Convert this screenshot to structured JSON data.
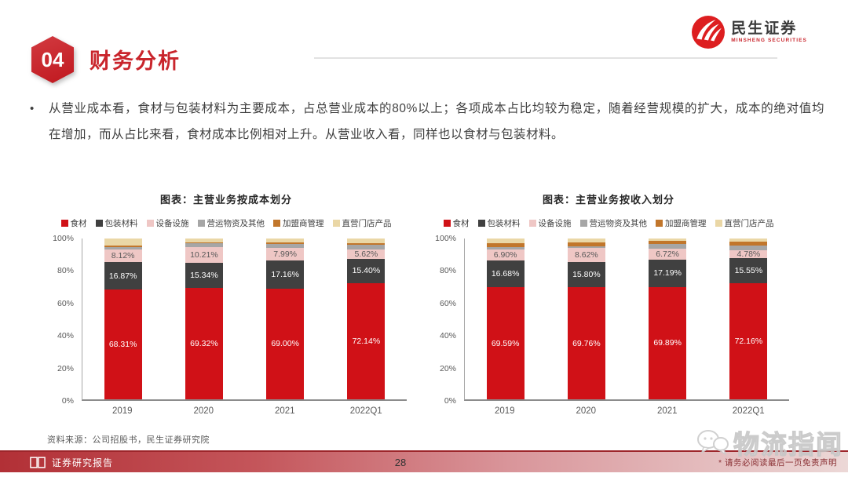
{
  "header": {
    "section_number": "04",
    "title": "财务分析"
  },
  "logo": {
    "name": "民生证券",
    "subtitle": "MINSHENG SECURITIES",
    "brand_color": "#dd1e20"
  },
  "bullet": {
    "marker": "•",
    "text": "从营业成本看，食材与包装材料为主要成本，占总营业成本的80%以上；各项成本占比均较为稳定，随着经营规模的扩大，成本的绝对值均在增加，而从占比来看，食材成本比例相对上升。从营业收入看，同样也以食材与包装材料。"
  },
  "chart_data": [
    {
      "type": "bar",
      "stacked": true,
      "title": "图表：主营业务按成本划分",
      "categories": [
        "2019",
        "2020",
        "2021",
        "2022Q1"
      ],
      "ylim": [
        0,
        100
      ],
      "yticks": [
        "0%",
        "20%",
        "40%",
        "60%",
        "80%",
        "100%"
      ],
      "grid": false,
      "legend_position": "top",
      "series": [
        {
          "name": "食材",
          "color": "#d01117",
          "labeled": true,
          "label_color": "#ffffff",
          "values": [
            68.31,
            69.32,
            69.0,
            72.14
          ]
        },
        {
          "name": "包装材料",
          "color": "#404040",
          "labeled": true,
          "label_color": "#ffffff",
          "values": [
            16.87,
            15.34,
            17.16,
            15.4
          ]
        },
        {
          "name": "设备设施",
          "color": "#efc7c5",
          "labeled": true,
          "label_color": "#595959",
          "values": [
            8.12,
            10.21,
            7.99,
            5.62
          ]
        },
        {
          "name": "营运物资及其他",
          "color": "#a6a6a6",
          "labeled": false,
          "label_color": "#595959",
          "values": [
            1.5,
            2.2,
            2.5,
            3.0
          ]
        },
        {
          "name": "加盟商管理",
          "color": "#c1762b",
          "labeled": false,
          "label_color": "#595959",
          "values": [
            0.8,
            0.5,
            0.9,
            1.0
          ]
        },
        {
          "name": "直营门店产品",
          "color": "#ead7a6",
          "labeled": false,
          "label_color": "#595959",
          "values": [
            4.4,
            2.43,
            2.45,
            2.84
          ]
        }
      ]
    },
    {
      "type": "bar",
      "stacked": true,
      "title": "图表：主营业务按收入划分",
      "categories": [
        "2019",
        "2020",
        "2021",
        "2022Q1"
      ],
      "ylim": [
        0,
        100
      ],
      "yticks": [
        "0%",
        "20%",
        "40%",
        "60%",
        "80%",
        "100%"
      ],
      "grid": false,
      "legend_position": "top",
      "series": [
        {
          "name": "食材",
          "color": "#d01117",
          "labeled": true,
          "label_color": "#ffffff",
          "values": [
            69.59,
            69.76,
            69.89,
            72.16
          ]
        },
        {
          "name": "包装材料",
          "color": "#404040",
          "labeled": true,
          "label_color": "#ffffff",
          "values": [
            16.68,
            15.8,
            17.19,
            15.55
          ]
        },
        {
          "name": "设备设施",
          "color": "#efc7c5",
          "labeled": true,
          "label_color": "#595959",
          "values": [
            6.9,
            8.62,
            6.72,
            4.78
          ]
        },
        {
          "name": "营运物资及其他",
          "color": "#a6a6a6",
          "labeled": false,
          "label_color": "#595959",
          "values": [
            1.3,
            1.2,
            2.6,
            3.0
          ]
        },
        {
          "name": "加盟商管理",
          "color": "#c1762b",
          "labeled": false,
          "label_color": "#595959",
          "values": [
            2.5,
            2.3,
            2.0,
            2.7
          ]
        },
        {
          "name": "直营门店产品",
          "color": "#ead7a6",
          "labeled": false,
          "label_color": "#595959",
          "values": [
            3.03,
            2.32,
            1.6,
            1.81
          ]
        }
      ]
    }
  ],
  "source": "资料来源：公司招股书，民生证券研究院",
  "watermark": {
    "text": "物流指闻"
  },
  "footer": {
    "report_type": "证券研究报告",
    "page_number": "28",
    "disclaimer": "* 请务必阅读最后一页免责声明"
  }
}
